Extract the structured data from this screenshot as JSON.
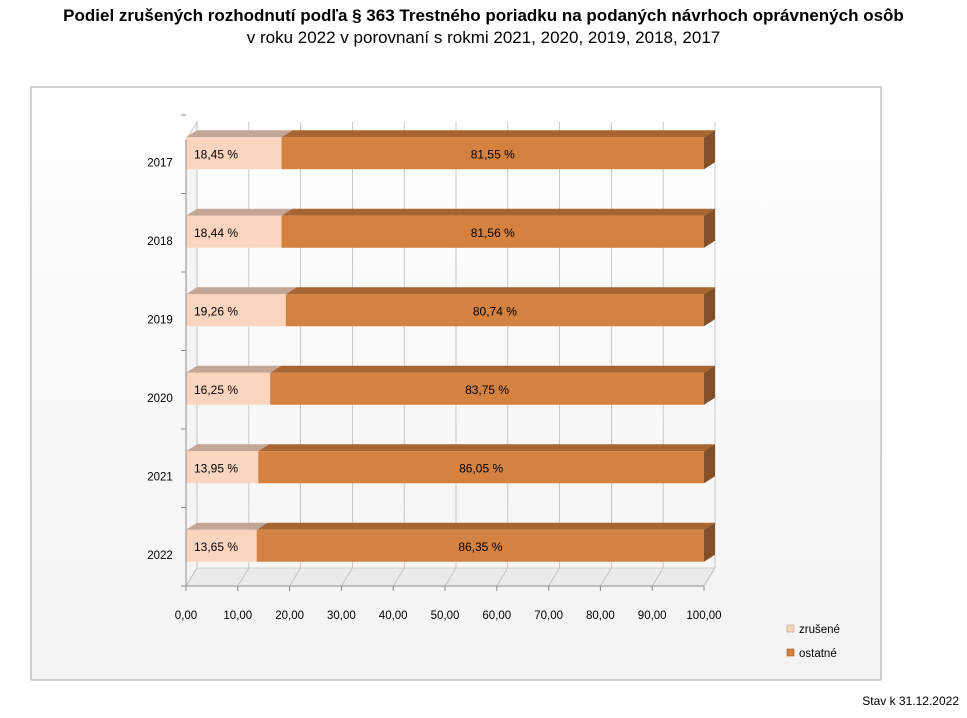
{
  "title": "Podiel zrušených rozhodnutí podľa § 363 Trestného poriadku na podaných návrhoch oprávnených osôb",
  "subtitle": "v roku 2022 v porovnaní s rokmi 2021, 2020, 2019, 2018, 2017",
  "footer": "Stav k 31.12.2022",
  "chart_data": {
    "type": "bar",
    "orientation": "horizontal",
    "stacked": true,
    "categories": [
      "2017",
      "2018",
      "2019",
      "2020",
      "2021",
      "2022"
    ],
    "series": [
      {
        "name": "zrušené",
        "color": "#fbd5c0",
        "values": [
          18.45,
          18.44,
          19.26,
          16.25,
          13.95,
          13.65
        ],
        "labels": [
          "18,45 %",
          "18,44 %",
          "19,26 %",
          "16,25 %",
          "13,95 %",
          "13,65 %"
        ]
      },
      {
        "name": "ostatné",
        "color": "#d5813f",
        "values": [
          81.55,
          81.56,
          80.74,
          83.75,
          86.05,
          86.35
        ],
        "labels": [
          "81,55 %",
          "81,56 %",
          "80,74 %",
          "83,75 %",
          "86,05 %",
          "86,35 %"
        ]
      }
    ],
    "xlim": [
      0,
      100
    ],
    "x_ticks": [
      "0,00",
      "10,00",
      "20,00",
      "30,00",
      "40,00",
      "50,00",
      "60,00",
      "70,00",
      "80,00",
      "90,00",
      "100,00"
    ],
    "legend_position": "bottom-right",
    "grid": true,
    "style": "3d"
  }
}
